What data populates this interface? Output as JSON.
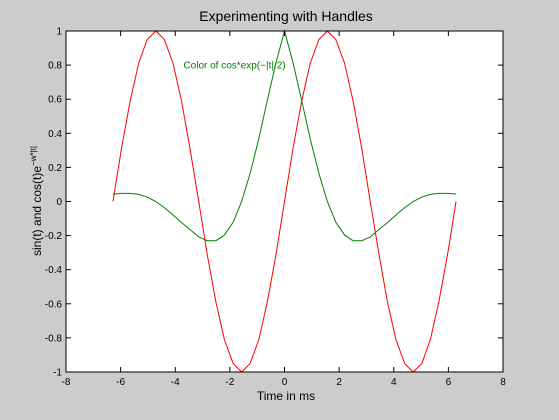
{
  "chart_data": {
    "type": "line",
    "title": "Experimenting with Handles",
    "xlabel": "Time in ms",
    "ylabel": {
      "base": "sin(t) and cos(t)e",
      "superscript": "−w*|t|"
    },
    "xlim": [
      -8,
      8
    ],
    "ylim": [
      -1,
      1
    ],
    "xticks": [
      -8,
      -6,
      -4,
      -2,
      0,
      2,
      4,
      6,
      8
    ],
    "yticks": [
      -1,
      -0.8,
      -0.6,
      -0.4,
      -0.2,
      0,
      0.2,
      0.4,
      0.6,
      0.8,
      1
    ],
    "xtick_labels": [
      "-8",
      "-6",
      "-4",
      "-2",
      "0",
      "2",
      "4",
      "6",
      "8"
    ],
    "ytick_labels": [
      "-1",
      "-0.8",
      "-0.6",
      "-0.4",
      "-0.2",
      "0",
      "0.2",
      "0.4",
      "0.6",
      "0.8",
      "1"
    ],
    "grid": false,
    "annotation": {
      "text": "Color of cos*exp(−|t|/2)",
      "x": -3.7,
      "y": 0.8,
      "color": "#008000"
    },
    "series": [
      {
        "color": "#ff0000",
        "x": [
          -6.28,
          -5.97,
          -5.65,
          -5.34,
          -5.03,
          -4.71,
          -4.4,
          -4.08,
          -3.77,
          -3.46,
          -3.14,
          -2.83,
          -2.51,
          -2.2,
          -1.88,
          -1.57,
          -1.26,
          -0.94,
          -0.63,
          -0.31,
          0.0,
          0.31,
          0.63,
          0.94,
          1.26,
          1.57,
          1.88,
          2.2,
          2.51,
          2.83,
          3.14,
          3.46,
          3.77,
          4.08,
          4.4,
          4.71,
          5.03,
          5.34,
          5.65,
          5.97,
          6.28
        ],
        "y": [
          0.0,
          0.31,
          0.59,
          0.81,
          0.95,
          1.0,
          0.95,
          0.81,
          0.59,
          0.31,
          0.0,
          -0.31,
          -0.59,
          -0.81,
          -0.95,
          -1.0,
          -0.95,
          -0.81,
          -0.59,
          -0.31,
          0.0,
          0.31,
          0.59,
          0.81,
          0.95,
          1.0,
          0.95,
          0.81,
          0.59,
          0.31,
          0.0,
          -0.31,
          -0.59,
          -0.81,
          -0.95,
          -1.0,
          -0.95,
          -0.81,
          -0.59,
          -0.31,
          0.0
        ]
      },
      {
        "color": "#008000",
        "x": [
          -6.28,
          -5.97,
          -5.65,
          -5.34,
          -5.03,
          -4.71,
          -4.4,
          -4.08,
          -3.77,
          -3.46,
          -3.14,
          -2.83,
          -2.51,
          -2.2,
          -1.88,
          -1.57,
          -1.26,
          -0.94,
          -0.63,
          -0.31,
          0.0,
          0.31,
          0.63,
          0.94,
          1.26,
          1.57,
          1.88,
          2.2,
          2.51,
          2.83,
          3.14,
          3.46,
          3.77,
          4.08,
          4.4,
          4.71,
          5.03,
          5.34,
          5.65,
          5.97,
          6.28
        ],
        "y": [
          0.043,
          0.048,
          0.048,
          0.042,
          0.026,
          0.0,
          -0.036,
          -0.079,
          -0.124,
          -0.164,
          -0.208,
          -0.23,
          -0.23,
          -0.197,
          -0.122,
          0.0,
          0.164,
          0.369,
          0.592,
          0.815,
          1.0,
          0.815,
          0.592,
          0.369,
          0.164,
          0.0,
          -0.122,
          -0.197,
          -0.23,
          -0.23,
          -0.208,
          -0.164,
          -0.124,
          -0.079,
          -0.036,
          0.0,
          0.026,
          0.042,
          0.048,
          0.048,
          0.043
        ]
      }
    ]
  }
}
